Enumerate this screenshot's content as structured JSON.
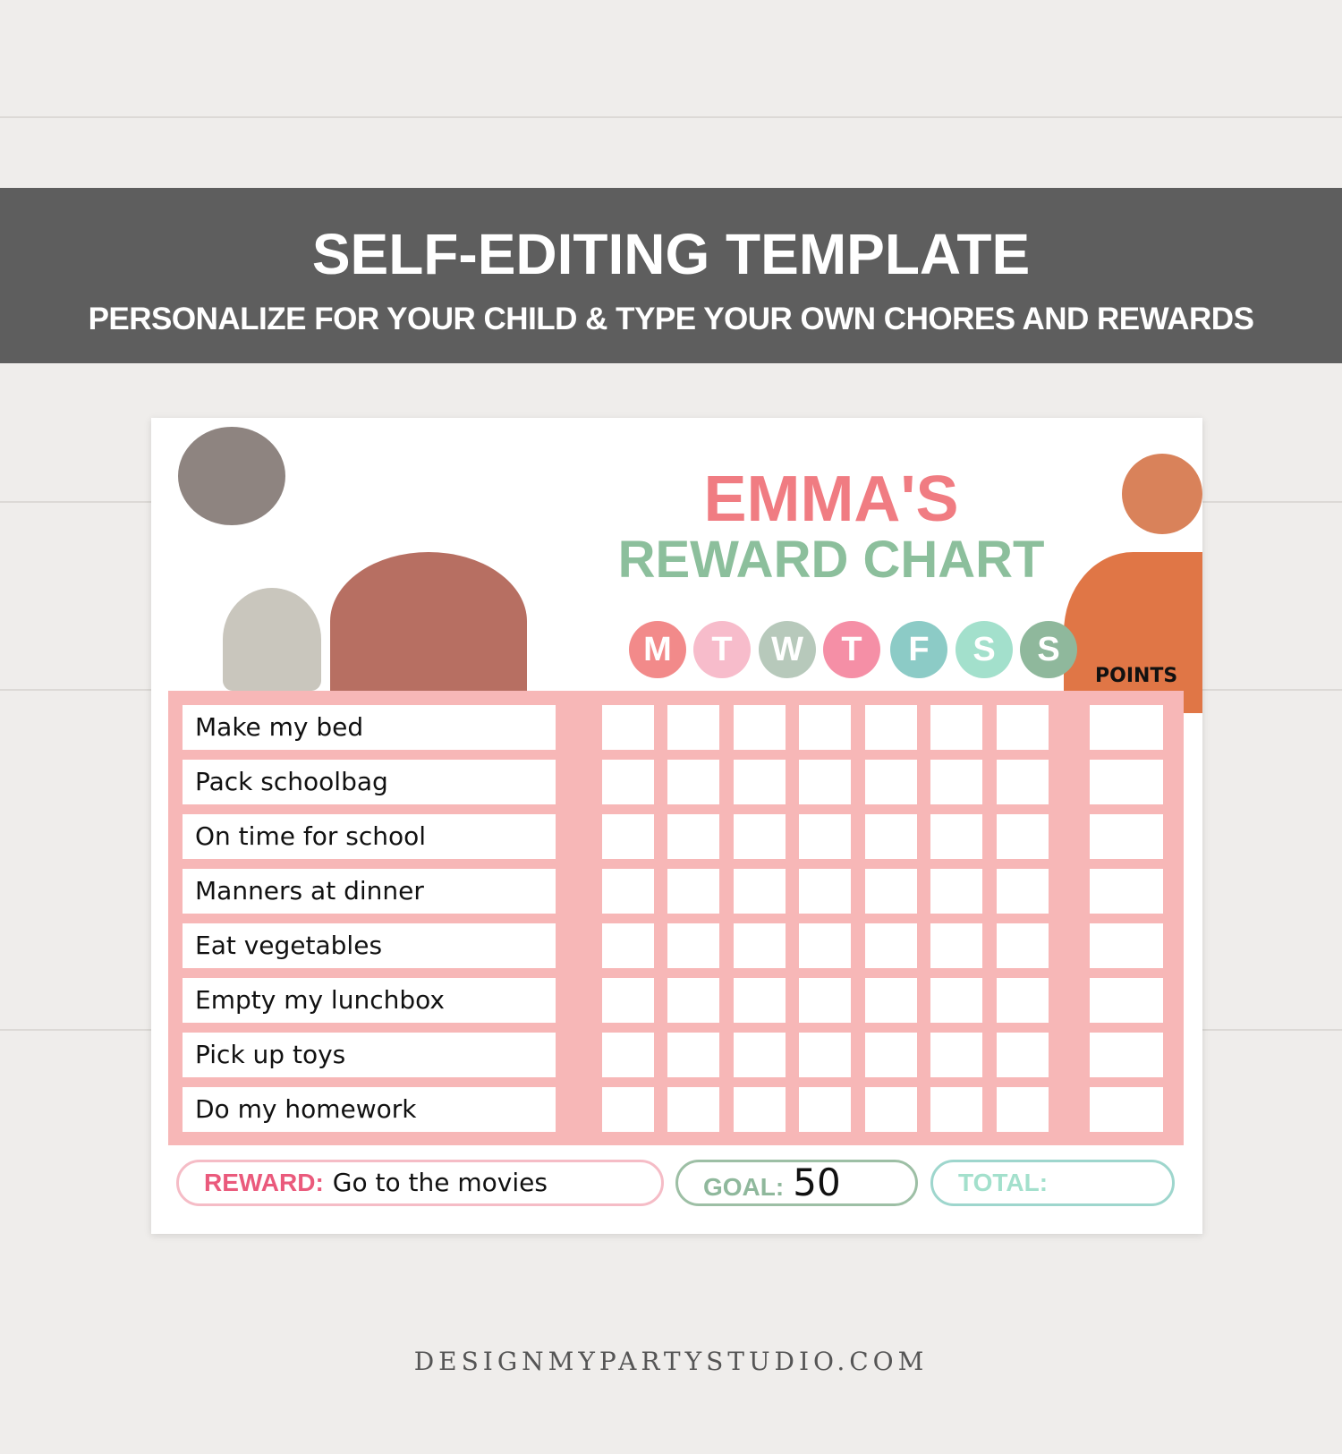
{
  "banner": {
    "title": "SELF-EDITING TEMPLATE",
    "subtitle": "PERSONALIZE FOR YOUR CHILD & TYPE YOUR OWN CHORES AND REWARDS"
  },
  "chart": {
    "name": "EMMA'S",
    "title": "REWARD CHART",
    "points_label": "POINTS",
    "days": [
      {
        "l": "M",
        "c": "#f28a8a"
      },
      {
        "l": "T",
        "c": "#f7bccb"
      },
      {
        "l": "W",
        "c": "#b7c9bb"
      },
      {
        "l": "T",
        "c": "#f58fa6"
      },
      {
        "l": "F",
        "c": "#8ccbc6"
      },
      {
        "l": "S",
        "c": "#a3e0cc"
      },
      {
        "l": "S",
        "c": "#8fb89c"
      }
    ],
    "chores": [
      "Make my bed",
      "Pack schoolbag",
      "On time for school",
      "Manners at dinner",
      "Eat vegetables",
      "Empty my lunchbox",
      "Pick up toys",
      "Do my homework"
    ],
    "reward": {
      "label": "REWARD:",
      "value": "Go to the movies"
    },
    "goal": {
      "label": "GOAL:",
      "value": "50"
    },
    "total": {
      "label": "TOTAL:",
      "value": ""
    }
  },
  "colors": {
    "name": "#f07c82",
    "title": "#8cbf9c",
    "grid": "#f7b7b7",
    "banner": "#5e5e5e"
  },
  "footer": "DESIGNMYPARTYSTUDIO.COM"
}
